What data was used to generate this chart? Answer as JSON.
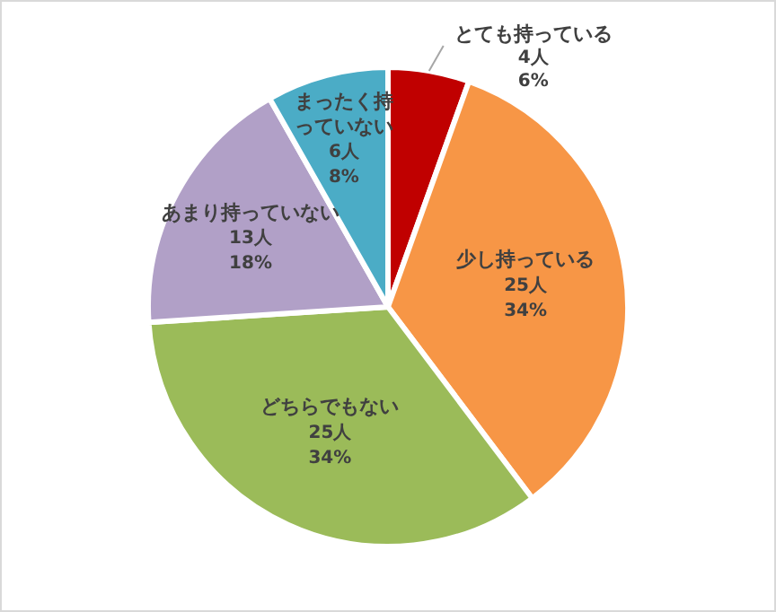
{
  "chart_data": {
    "type": "pie",
    "categories": [
      "とても持っている",
      "少し持っている",
      "どちらでもない",
      "あまり持っていない",
      "まったく持っていない"
    ],
    "values": [
      4,
      25,
      25,
      13,
      6
    ],
    "colors": [
      "#c00000",
      "#f79646",
      "#9bbb59",
      "#b1a0c7",
      "#4bacc6"
    ],
    "value_labels": [
      "4人\n6%",
      "25人\n34%",
      "25人\n34%",
      "13人\n18%",
      "6人\n8%"
    ],
    "legend": false
  }
}
